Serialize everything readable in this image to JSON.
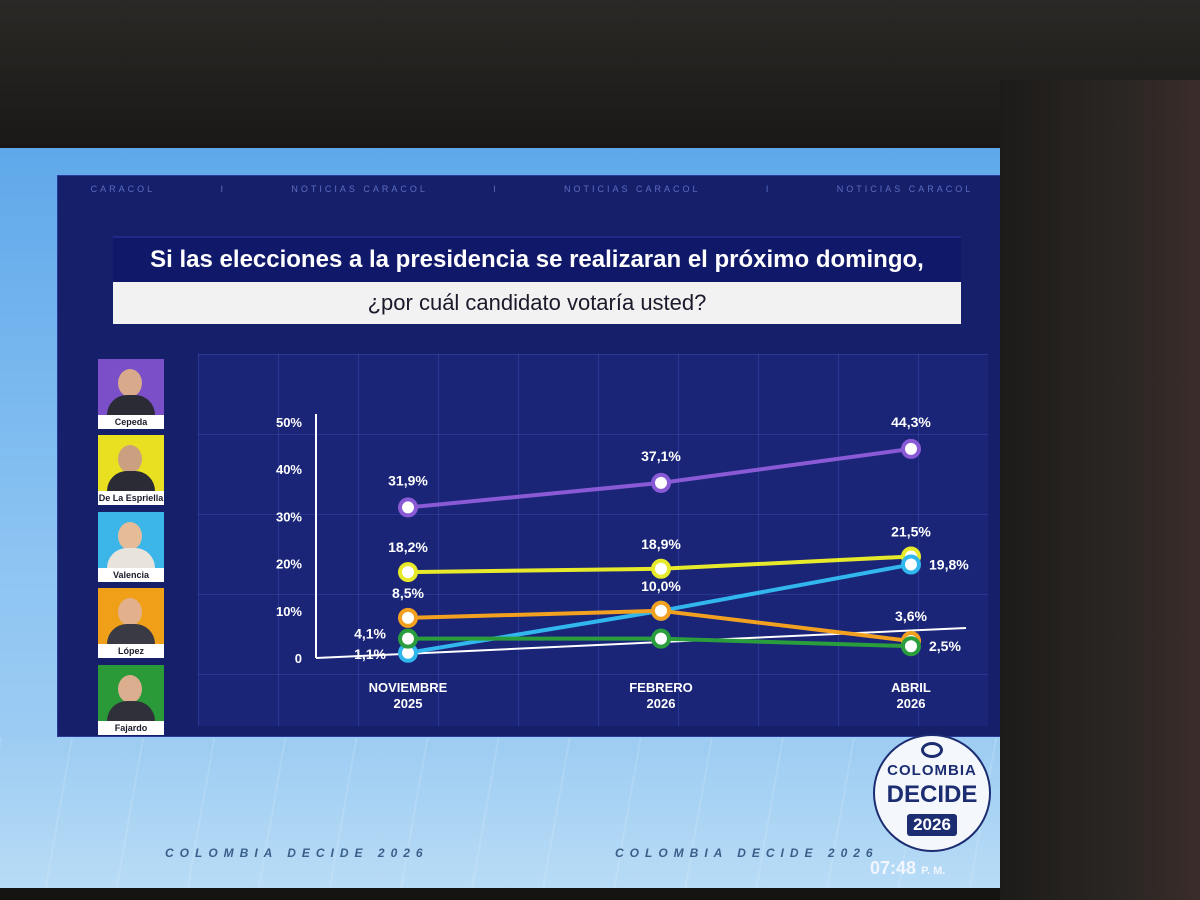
{
  "ticker": [
    "CARACOL",
    "I",
    "NOTICIAS CARACOL",
    "I",
    "NOTICIAS CARACOL",
    "I",
    "NOTICIAS CARACOL"
  ],
  "question": {
    "line1": "Si las elecciones a la presidencia se realizaran el próximo domingo,",
    "line2": "¿por cuál candidato votaría usted?"
  },
  "candidates": [
    {
      "name": "Cepeda",
      "bg": "#7a4fc8"
    },
    {
      "name": "De La Espriella",
      "bg": "#e8e020"
    },
    {
      "name": "Valencia",
      "bg": "#3cb6e8"
    },
    {
      "name": "López",
      "bg": "#f0a018"
    },
    {
      "name": "Fajardo",
      "bg": "#2a9a38"
    }
  ],
  "chart_data": {
    "type": "line",
    "categories": [
      [
        "NOVIEMBRE",
        "2025"
      ],
      [
        "FEBRERO",
        "2026"
      ],
      [
        "ABRIL",
        "2026"
      ]
    ],
    "y_ticks": [
      "50%",
      "40%",
      "30%",
      "20%",
      "10%",
      "0"
    ],
    "ylim": [
      0,
      50
    ],
    "grid": true,
    "series": [
      {
        "candidate": "Cepeda",
        "color": "#8a5ad6",
        "values": [
          31.9,
          37.1,
          44.3
        ],
        "labels": [
          "31,9%",
          "37,1%",
          "44,3%"
        ]
      },
      {
        "candidate": "De La Espriella",
        "color": "#e6ea2a",
        "values": [
          18.2,
          18.9,
          21.5
        ],
        "labels": [
          "18,2%",
          "18,9%",
          "21,5%"
        ]
      },
      {
        "candidate": "Valencia",
        "color": "#32b6ee",
        "values": [
          1.1,
          10.0,
          19.8
        ],
        "labels": [
          "1,1%",
          "",
          "19,8%"
        ]
      },
      {
        "candidate": "López",
        "color": "#f2a020",
        "values": [
          8.5,
          10.0,
          3.6
        ],
        "labels": [
          "8,5%",
          "10,0%",
          "3,6%"
        ]
      },
      {
        "candidate": "Fajardo",
        "color": "#2a9e3c",
        "values": [
          4.1,
          4.1,
          2.5
        ],
        "labels": [
          "4,1%",
          "",
          "2,5%"
        ]
      }
    ]
  },
  "footer": {
    "left": "COLOMBIA DECIDE 2026",
    "right": "COLOMBIA DECIDE 2026"
  },
  "logo": {
    "top": "COLOMBIA",
    "mid": "DECIDE",
    "year": "2026"
  },
  "clock": {
    "time": "07:48",
    "ampm": "P. M."
  }
}
